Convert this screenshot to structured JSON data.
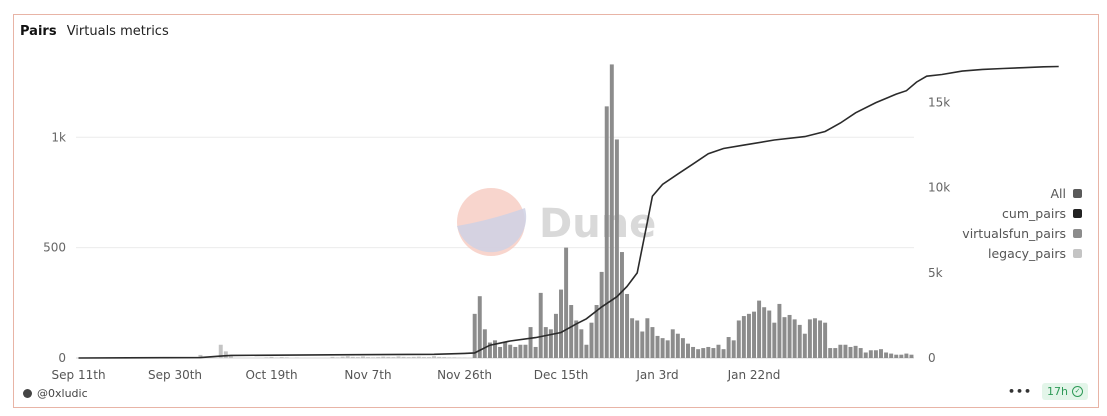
{
  "header": {
    "title": "Pairs",
    "subtitle": "Virtuals metrics"
  },
  "footer": {
    "author": "@0xludic",
    "more": "•••",
    "age": "17h"
  },
  "watermark": {
    "text": "Dune"
  },
  "colors": {
    "cum_line": "#2b2b2b",
    "virtualsfun_bar": "#8c8c8c",
    "legacy_bar": "#c4c4c4",
    "all_swatch": "#5a5a5a",
    "cum_swatch": "#222222",
    "gridline": "#ececec"
  },
  "legend": [
    {
      "label": "All",
      "color": "#5a5a5a"
    },
    {
      "label": "cum_pairs",
      "color": "#222222"
    },
    {
      "label": "virtualsfun_pairs",
      "color": "#8c8c8c"
    },
    {
      "label": "legacy_pairs",
      "color": "#c4c4c4"
    }
  ],
  "chart_data": {
    "type": "bar",
    "title": "Pairs",
    "x_start": "Sep 11th",
    "x_ticks": [
      "Sep 11th",
      "Sep 30th",
      "Oct 19th",
      "Nov 7th",
      "Nov 26th",
      "Dec 15th",
      "Jan 3rd",
      "Jan 22nd"
    ],
    "x_tick_every": 19,
    "y_left": {
      "ticks": [
        "0",
        "500",
        "1k"
      ],
      "tick_values": [
        0,
        500,
        1000
      ],
      "range": [
        0,
        1350
      ]
    },
    "y_right": {
      "ticks": [
        "0",
        "5k",
        "10k",
        "15k"
      ],
      "tick_values": [
        0,
        5000,
        10000,
        15000
      ],
      "range": [
        0,
        17500
      ]
    },
    "series": [
      {
        "name": "virtualsfun_pairs",
        "type": "bar",
        "axis": "left",
        "values": [
          0,
          0,
          0,
          0,
          0,
          0,
          0,
          0,
          0,
          0,
          0,
          0,
          0,
          0,
          0,
          0,
          0,
          0,
          0,
          0,
          0,
          0,
          0,
          0,
          0,
          0,
          0,
          0,
          0,
          0,
          0,
          0,
          0,
          0,
          0,
          0,
          0,
          0,
          0,
          0,
          0,
          0,
          0,
          0,
          0,
          0,
          0,
          0,
          0,
          0,
          0,
          0,
          0,
          0,
          0,
          0,
          0,
          0,
          0,
          0,
          0,
          0,
          0,
          0,
          0,
          0,
          0,
          0,
          0,
          0,
          0,
          0,
          0,
          0,
          0,
          0,
          0,
          0,
          200,
          280,
          130,
          70,
          80,
          50,
          70,
          60,
          50,
          60,
          60,
          140,
          50,
          295,
          140,
          130,
          200,
          310,
          500,
          240,
          170,
          130,
          60,
          160,
          240,
          390,
          1140,
          1330,
          990,
          480,
          290,
          180,
          170,
          120,
          180,
          140,
          100,
          90,
          80,
          130,
          110,
          90,
          65,
          50,
          40,
          45,
          50,
          45,
          60,
          40,
          95,
          80,
          170,
          190,
          200,
          210,
          260,
          230,
          215,
          160,
          245,
          185,
          195,
          175,
          150,
          110,
          175,
          180,
          170,
          160,
          45,
          45,
          60,
          60,
          50,
          55,
          45,
          25,
          35,
          35,
          40,
          25,
          20,
          15,
          15,
          20,
          15
        ]
      },
      {
        "name": "legacy_pairs",
        "type": "bar",
        "axis": "left",
        "values": [
          0,
          0,
          0,
          0,
          0,
          0,
          0,
          0,
          0,
          0,
          0,
          0,
          0,
          0,
          0,
          0,
          0,
          0,
          0,
          0,
          0,
          0,
          0,
          0,
          14,
          0,
          0,
          0,
          60,
          30,
          8,
          0,
          0,
          0,
          0,
          0,
          0,
          3,
          5,
          2,
          4,
          3,
          0,
          2,
          0,
          0,
          0,
          0,
          0,
          0,
          5,
          3,
          6,
          8,
          5,
          4,
          7,
          4,
          3,
          4,
          6,
          5,
          4,
          7,
          5,
          4,
          5,
          6,
          4,
          4,
          8,
          5,
          4,
          3,
          3,
          2,
          2,
          1,
          0,
          0,
          0,
          0,
          0,
          0,
          0,
          0,
          0,
          0,
          0,
          0,
          0,
          0,
          0,
          0,
          0,
          0,
          0,
          0,
          0,
          0,
          0,
          0,
          0,
          0,
          0,
          0,
          0,
          0,
          0,
          0,
          0,
          0,
          0,
          0,
          0,
          0,
          0,
          0,
          0,
          0,
          0,
          0,
          0,
          0,
          0,
          0,
          0,
          0,
          0,
          0,
          0,
          0,
          0,
          0,
          0,
          0,
          0,
          0,
          0,
          0,
          0,
          0,
          0,
          0,
          0,
          0,
          0,
          0,
          0,
          0,
          0,
          0,
          0,
          0,
          0,
          0,
          0,
          0,
          0,
          0,
          0,
          0,
          0,
          0,
          0,
          0
        ]
      },
      {
        "name": "cum_pairs",
        "type": "line",
        "axis": "right",
        "points": [
          [
            0,
            0
          ],
          [
            24,
            25
          ],
          [
            28,
            110
          ],
          [
            30,
            150
          ],
          [
            50,
            190
          ],
          [
            70,
            220
          ],
          [
            76,
            270
          ],
          [
            78,
            300
          ],
          [
            81,
            750
          ],
          [
            85,
            1000
          ],
          [
            90,
            1200
          ],
          [
            95,
            1500
          ],
          [
            98,
            2000
          ],
          [
            100,
            2300
          ],
          [
            103,
            3000
          ],
          [
            106,
            3600
          ],
          [
            108,
            4200
          ],
          [
            110,
            5000
          ],
          [
            111,
            6500
          ],
          [
            112,
            8000
          ],
          [
            113,
            9500
          ],
          [
            115,
            10200
          ],
          [
            118,
            10800
          ],
          [
            121,
            11400
          ],
          [
            124,
            12000
          ],
          [
            127,
            12300
          ],
          [
            131,
            12500
          ],
          [
            137,
            12800
          ],
          [
            143,
            13000
          ],
          [
            147,
            13300
          ],
          [
            150,
            13800
          ],
          [
            153,
            14400
          ],
          [
            157,
            15000
          ],
          [
            161,
            15500
          ],
          [
            163,
            15700
          ],
          [
            165,
            16200
          ],
          [
            167,
            16550
          ],
          [
            170,
            16650
          ],
          [
            174,
            16850
          ],
          [
            178,
            16950
          ],
          [
            182,
            17000
          ],
          [
            186,
            17050
          ],
          [
            190,
            17100
          ],
          [
            193,
            17120
          ]
        ]
      }
    ]
  }
}
